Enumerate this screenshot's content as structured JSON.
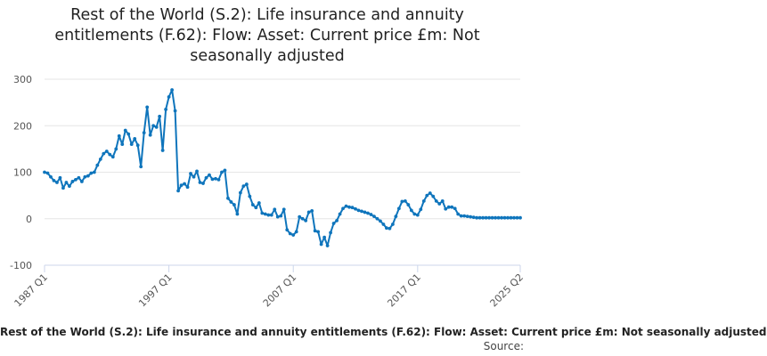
{
  "chart_data": {
    "type": "line",
    "title_lines": [
      "Rest of the World (S.2): Life insurance and annuity",
      "entitlements (F.62): Flow: Asset: Current price £m: Not",
      "seasonally adjusted"
    ],
    "xlabel": "",
    "ylabel": "",
    "xlim": [
      "1987 Q1",
      "2025 Q2"
    ],
    "ylim": [
      -100,
      300
    ],
    "y_ticks": [
      -100,
      0,
      100,
      200,
      300
    ],
    "x_tick_labels": [
      "1987 Q1",
      "1997 Q1",
      "2007 Q1",
      "2017 Q1",
      "2025 Q2"
    ],
    "grid": "horizontal",
    "legend": "bottom",
    "series": [
      {
        "name": "Rest of the World (S.2): Life insurance and annuity entitlements (F.62): Flow: Asset: Current price £m: Not seasonally adjusted",
        "color": "#0f75bc",
        "points": [
          [
            "1987 Q1",
            100
          ],
          [
            "1987 Q2",
            98
          ],
          [
            "1987 Q3",
            90
          ],
          [
            "1987 Q4",
            82
          ],
          [
            "1988 Q1",
            78
          ],
          [
            "1988 Q2",
            88
          ],
          [
            "1988 Q3",
            66
          ],
          [
            "1988 Q4",
            78
          ],
          [
            "1989 Q1",
            70
          ],
          [
            "1989 Q2",
            80
          ],
          [
            "1989 Q3",
            84
          ],
          [
            "1989 Q4",
            88
          ],
          [
            "1990 Q1",
            80
          ],
          [
            "1990 Q2",
            90
          ],
          [
            "1990 Q3",
            92
          ],
          [
            "1990 Q4",
            98
          ],
          [
            "1991 Q1",
            100
          ],
          [
            "1991 Q2",
            115
          ],
          [
            "1991 Q3",
            128
          ],
          [
            "1991 Q4",
            140
          ],
          [
            "1992 Q1",
            145
          ],
          [
            "1992 Q2",
            138
          ],
          [
            "1992 Q3",
            133
          ],
          [
            "1992 Q4",
            150
          ],
          [
            "1993 Q1",
            178
          ],
          [
            "1993 Q2",
            160
          ],
          [
            "1993 Q3",
            190
          ],
          [
            "1993 Q4",
            182
          ],
          [
            "1994 Q1",
            160
          ],
          [
            "1994 Q2",
            172
          ],
          [
            "1994 Q3",
            158
          ],
          [
            "1994 Q4",
            112
          ],
          [
            "1995 Q1",
            185
          ],
          [
            "1995 Q2",
            240
          ],
          [
            "1995 Q3",
            180
          ],
          [
            "1995 Q4",
            200
          ],
          [
            "1996 Q1",
            197
          ],
          [
            "1996 Q2",
            220
          ],
          [
            "1996 Q3",
            147
          ],
          [
            "1996 Q4",
            235
          ],
          [
            "1997 Q1",
            262
          ],
          [
            "1997 Q2",
            277
          ],
          [
            "1997 Q3",
            232
          ],
          [
            "1997 Q4",
            60
          ],
          [
            "1998 Q1",
            72
          ],
          [
            "1998 Q2",
            75
          ],
          [
            "1998 Q3",
            68
          ],
          [
            "1998 Q4",
            97
          ],
          [
            "1999 Q1",
            90
          ],
          [
            "1999 Q2",
            102
          ],
          [
            "1999 Q3",
            78
          ],
          [
            "1999 Q4",
            76
          ],
          [
            "2000 Q1",
            88
          ],
          [
            "2000 Q2",
            94
          ],
          [
            "2000 Q3",
            85
          ],
          [
            "2000 Q4",
            86
          ],
          [
            "2001 Q1",
            84
          ],
          [
            "2001 Q2",
            100
          ],
          [
            "2001 Q3",
            104
          ],
          [
            "2001 Q4",
            44
          ],
          [
            "2002 Q1",
            36
          ],
          [
            "2002 Q2",
            30
          ],
          [
            "2002 Q3",
            10
          ],
          [
            "2002 Q4",
            56
          ],
          [
            "2003 Q1",
            70
          ],
          [
            "2003 Q2",
            74
          ],
          [
            "2003 Q3",
            48
          ],
          [
            "2003 Q4",
            30
          ],
          [
            "2004 Q1",
            24
          ],
          [
            "2004 Q2",
            34
          ],
          [
            "2004 Q3",
            12
          ],
          [
            "2004 Q4",
            10
          ],
          [
            "2005 Q1",
            8
          ],
          [
            "2005 Q2",
            8
          ],
          [
            "2005 Q3",
            20
          ],
          [
            "2005 Q4",
            4
          ],
          [
            "2006 Q1",
            6
          ],
          [
            "2006 Q2",
            20
          ],
          [
            "2006 Q3",
            -24
          ],
          [
            "2006 Q4",
            -32
          ],
          [
            "2007 Q1",
            -35
          ],
          [
            "2007 Q2",
            -28
          ],
          [
            "2007 Q3",
            4
          ],
          [
            "2007 Q4",
            0
          ],
          [
            "2008 Q1",
            -4
          ],
          [
            "2008 Q2",
            14
          ],
          [
            "2008 Q3",
            17
          ],
          [
            "2008 Q4",
            -26
          ],
          [
            "2009 Q1",
            -28
          ],
          [
            "2009 Q2",
            -55
          ],
          [
            "2009 Q3",
            -40
          ],
          [
            "2009 Q4",
            -58
          ],
          [
            "2010 Q1",
            -30
          ],
          [
            "2010 Q2",
            -10
          ],
          [
            "2010 Q3",
            -4
          ],
          [
            "2010 Q4",
            10
          ],
          [
            "2011 Q1",
            22
          ],
          [
            "2011 Q2",
            27
          ],
          [
            "2011 Q3",
            25
          ],
          [
            "2011 Q4",
            24
          ],
          [
            "2012 Q1",
            21
          ],
          [
            "2012 Q2",
            18
          ],
          [
            "2012 Q3",
            16
          ],
          [
            "2012 Q4",
            14
          ],
          [
            "2013 Q1",
            12
          ],
          [
            "2013 Q2",
            9
          ],
          [
            "2013 Q3",
            5
          ],
          [
            "2013 Q4",
            0
          ],
          [
            "2014 Q1",
            -5
          ],
          [
            "2014 Q2",
            -12
          ],
          [
            "2014 Q3",
            -20
          ],
          [
            "2014 Q4",
            -21
          ],
          [
            "2015 Q1",
            -12
          ],
          [
            "2015 Q2",
            5
          ],
          [
            "2015 Q3",
            22
          ],
          [
            "2015 Q4",
            37
          ],
          [
            "2016 Q1",
            38
          ],
          [
            "2016 Q2",
            30
          ],
          [
            "2016 Q3",
            18
          ],
          [
            "2016 Q4",
            10
          ],
          [
            "2017 Q1",
            8
          ],
          [
            "2017 Q2",
            20
          ],
          [
            "2017 Q3",
            38
          ],
          [
            "2017 Q4",
            50
          ],
          [
            "2018 Q1",
            55
          ],
          [
            "2018 Q2",
            48
          ],
          [
            "2018 Q3",
            38
          ],
          [
            "2018 Q4",
            32
          ],
          [
            "2019 Q1",
            38
          ],
          [
            "2019 Q2",
            21
          ],
          [
            "2019 Q3",
            25
          ],
          [
            "2019 Q4",
            25
          ],
          [
            "2020 Q1",
            22
          ],
          [
            "2020 Q2",
            10
          ],
          [
            "2020 Q3",
            6
          ],
          [
            "2020 Q4",
            6
          ],
          [
            "2021 Q1",
            5
          ],
          [
            "2021 Q2",
            4
          ],
          [
            "2021 Q3",
            3
          ],
          [
            "2021 Q4",
            2
          ],
          [
            "2022 Q1",
            2
          ],
          [
            "2022 Q2",
            2
          ],
          [
            "2022 Q3",
            2
          ],
          [
            "2022 Q4",
            2
          ],
          [
            "2023 Q1",
            2
          ],
          [
            "2023 Q2",
            2
          ],
          [
            "2023 Q3",
            2
          ],
          [
            "2023 Q4",
            2
          ],
          [
            "2024 Q1",
            2
          ],
          [
            "2024 Q2",
            2
          ],
          [
            "2024 Q3",
            2
          ],
          [
            "2024 Q4",
            2
          ],
          [
            "2025 Q1",
            2
          ],
          [
            "2025 Q2",
            2
          ]
        ]
      }
    ]
  },
  "footer": {
    "series_label": "Rest of the World (S.2): Life insurance and annuity entitlements (F.62): Flow: Asset: Current price £m: Not seasonally adjusted",
    "source_label": "Source:"
  }
}
